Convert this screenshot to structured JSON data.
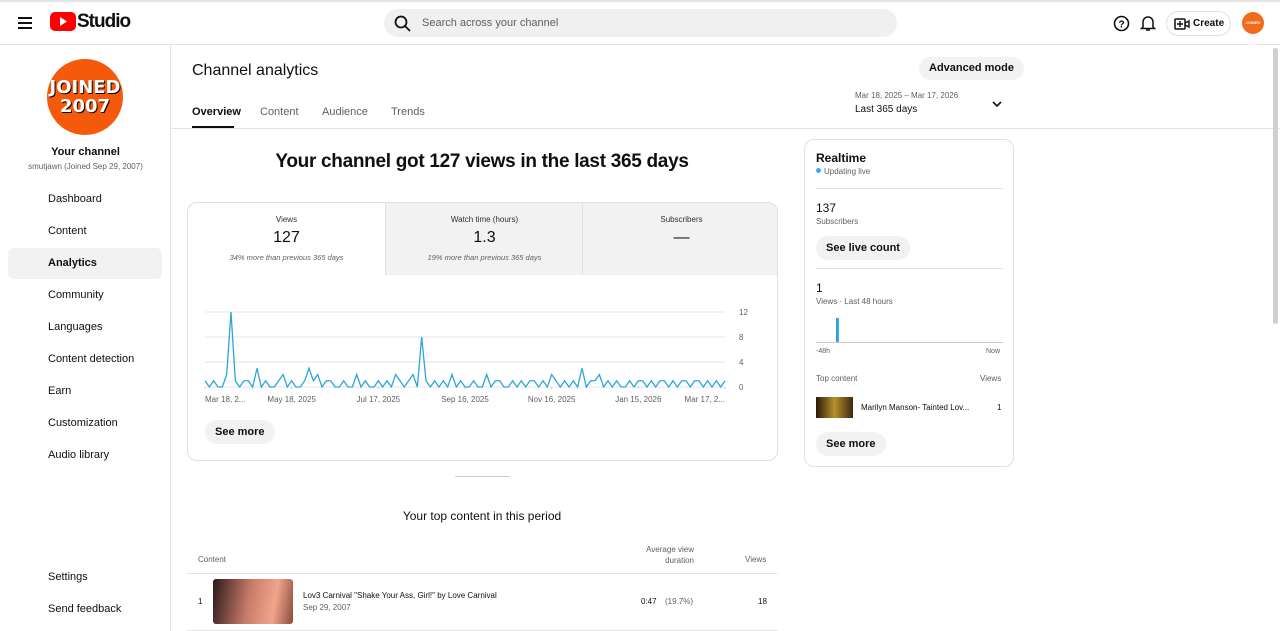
{
  "header": {
    "logo": "Studio",
    "search_placeholder": "Search across your channel",
    "create": "Create",
    "account_avatar": "JOINED 2007"
  },
  "sidebar": {
    "avatar_lines": [
      "JOINED",
      "2007"
    ],
    "channel_title": "Your channel",
    "channel_sub": "smutjawn (Joined Sep 29, 2007)",
    "nav": [
      "Dashboard",
      "Content",
      "Analytics",
      "Community",
      "Languages",
      "Content detection",
      "Earn",
      "Customization",
      "Audio library"
    ],
    "active": 2,
    "bottom": [
      "Settings",
      "Send feedback"
    ]
  },
  "page": {
    "title": "Channel analytics",
    "advanced": "Advanced mode",
    "tabs": [
      "Overview",
      "Content",
      "Audience",
      "Trends"
    ],
    "active_tab": 0,
    "date_range": "Mar 18, 2025 – Mar 17, 2026",
    "period": "Last 365 days"
  },
  "overview": {
    "headline": "Your channel got 127 views in the last 365 days",
    "metrics": [
      {
        "label": "Views",
        "value": "127",
        "note": "34% more than previous 365 days"
      },
      {
        "label": "Watch time (hours)",
        "value": "1.3",
        "note": "19% more than previous 365 days"
      },
      {
        "label": "Subscribers",
        "value": "—"
      }
    ],
    "chart": {
      "type": "line",
      "color": "#2ea5d8",
      "xlim": [
        0,
        120
      ],
      "ylim": [
        0,
        12
      ],
      "yticks": [
        0,
        4,
        8,
        12
      ],
      "grid": true,
      "xticks": [
        {
          "value": 0,
          "label": "Mar 18, 2..."
        },
        {
          "value": 20,
          "label": "May 18, 2025"
        },
        {
          "value": 40,
          "label": "Jul 17, 2025"
        },
        {
          "value": 60,
          "label": "Sep 16, 2025"
        },
        {
          "value": 80,
          "label": "Nov 16, 2025"
        },
        {
          "value": 100,
          "label": "Jan 15, 2026"
        },
        {
          "value": 120,
          "label": "Mar 17, 2..."
        }
      ],
      "values": [
        1,
        0,
        1,
        0,
        0,
        2,
        12,
        1,
        0,
        1,
        1,
        0,
        3,
        0,
        1,
        0,
        0,
        1,
        2,
        0,
        1,
        0,
        0,
        1,
        3,
        1,
        2,
        0,
        1,
        1,
        0,
        0,
        1,
        0,
        0,
        2,
        0,
        1,
        0,
        0,
        1,
        0,
        1,
        0,
        2,
        1,
        0,
        1,
        2,
        0,
        8,
        1,
        0,
        1,
        0,
        1,
        0,
        2,
        0,
        1,
        0,
        0,
        1,
        0,
        0,
        2,
        0,
        1,
        1,
        0,
        0,
        1,
        0,
        1,
        0,
        1,
        1,
        0,
        1,
        0,
        2,
        1,
        0,
        1,
        0,
        1,
        0,
        3,
        0,
        1,
        1,
        2,
        0,
        1,
        0,
        1,
        0,
        0,
        1,
        0,
        1,
        1,
        0,
        1,
        0,
        1,
        1,
        0,
        1,
        0,
        1,
        1,
        0,
        1,
        1,
        0,
        1,
        0,
        1,
        0,
        1
      ]
    },
    "see_more": "See more"
  },
  "realtime": {
    "title": "Realtime",
    "status": "Updating live",
    "subscribers": "137",
    "subscribers_label": "Subscribers",
    "live_count": "See live count",
    "views": "1",
    "views_label": "Views · Last 48 hours",
    "bars": [
      0,
      0,
      0,
      0,
      0,
      1,
      0,
      0,
      0,
      0,
      0,
      0,
      0,
      0,
      0,
      0,
      0,
      0,
      0,
      0,
      0,
      0,
      0,
      0,
      0,
      0,
      0,
      0,
      0,
      0,
      0,
      0,
      0,
      0,
      0,
      0,
      0,
      0,
      0,
      0,
      0,
      0,
      0,
      0,
      0,
      0,
      0,
      0
    ],
    "axis_start": "-48h",
    "axis_end": "Now",
    "top_content": "Top content",
    "top_views": "Views",
    "item_title": "Marilyn Manson- Tainted Lov...",
    "item_views": "1",
    "see_more": "See more"
  },
  "top_content": {
    "title": "Your top content in this period",
    "columns": [
      "Content",
      "Average view duration",
      "Views"
    ],
    "rows": [
      {
        "rank": "1",
        "title": "Lov3 Carnival \"Shake Your Ass, Girl!\" by Love Carnival",
        "date": "Sep 29, 2007",
        "duration": "0:47",
        "percent": "(19.7%)",
        "views": "18"
      }
    ]
  }
}
